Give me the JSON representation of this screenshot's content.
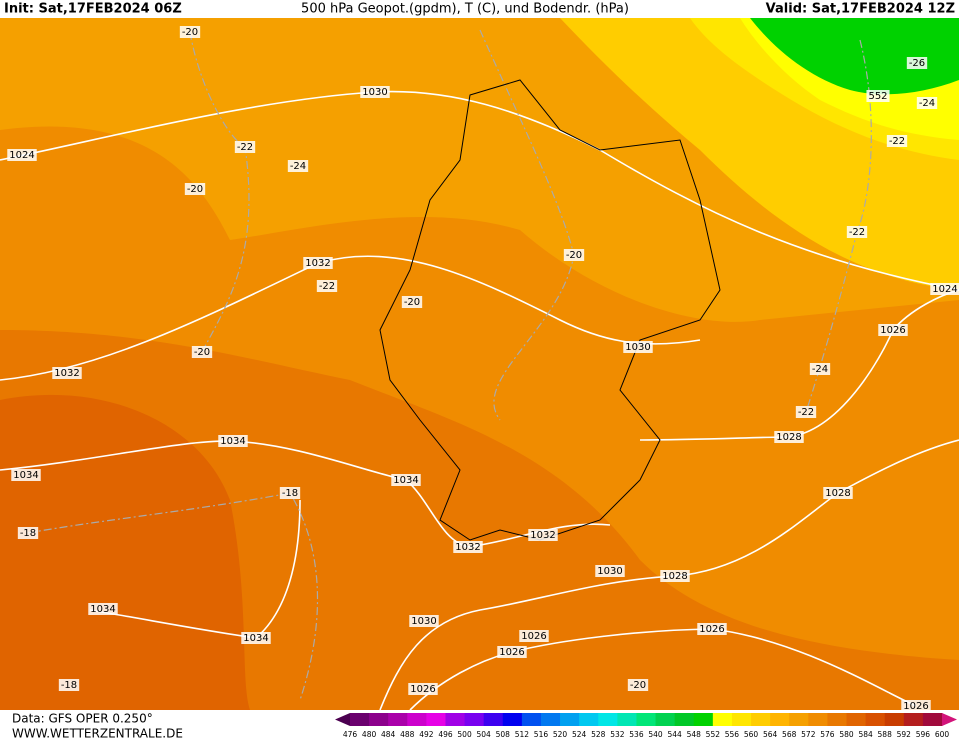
{
  "header": {
    "init": "Init: Sat,17FEB2024 06Z",
    "title": "500 hPa Geopot.(gpdm), T (C), und Bodendr. (hPa)",
    "valid": "Valid: Sat,17FEB2024 12Z"
  },
  "contour_labels": [
    "-20",
    "1030",
    "1024",
    "-22",
    "-24",
    "-20",
    "1032",
    "-22",
    "-20",
    "-20",
    "-20",
    "1030",
    "1032",
    "-24",
    "1026",
    "1024",
    "-22",
    "1028",
    "1034",
    "1034",
    "1034",
    "-18",
    "1028",
    "-18",
    "1032",
    "1032",
    "1030",
    "1028",
    "1034",
    "1030",
    "1026",
    "1034",
    "1026",
    "1026",
    "-18",
    "-20",
    "1026",
    "1026",
    "-26",
    "552",
    "-24",
    "-22",
    "-22"
  ],
  "footer": {
    "data": "Data: GFS OPER 0.250°",
    "site": "WWW.WETTERZENTRALE.DE"
  },
  "scale": {
    "labels": [
      476,
      480,
      484,
      488,
      492,
      496,
      500,
      504,
      508,
      512,
      516,
      520,
      524,
      528,
      532,
      536,
      540,
      544,
      548,
      552,
      556,
      560,
      564,
      568,
      572,
      576,
      580,
      584,
      588,
      592,
      596,
      600
    ],
    "colors": [
      "#4b0050",
      "#6a006e",
      "#8c008c",
      "#aa00aa",
      "#cc00cc",
      "#e600e6",
      "#a000e6",
      "#7800f0",
      "#3c00f0",
      "#0000f0",
      "#0050f0",
      "#0078f0",
      "#00a0f0",
      "#00c8f0",
      "#00e6e6",
      "#00e6b4",
      "#00e678",
      "#00d250",
      "#00c828",
      "#00d200",
      "#ffff00",
      "#ffe600",
      "#ffcd00",
      "#ffb400",
      "#f5a000",
      "#f08c00",
      "#e87800",
      "#e06400",
      "#d85000",
      "#c83c00",
      "#b41e1e",
      "#a00a3c",
      "#d2147a"
    ]
  }
}
